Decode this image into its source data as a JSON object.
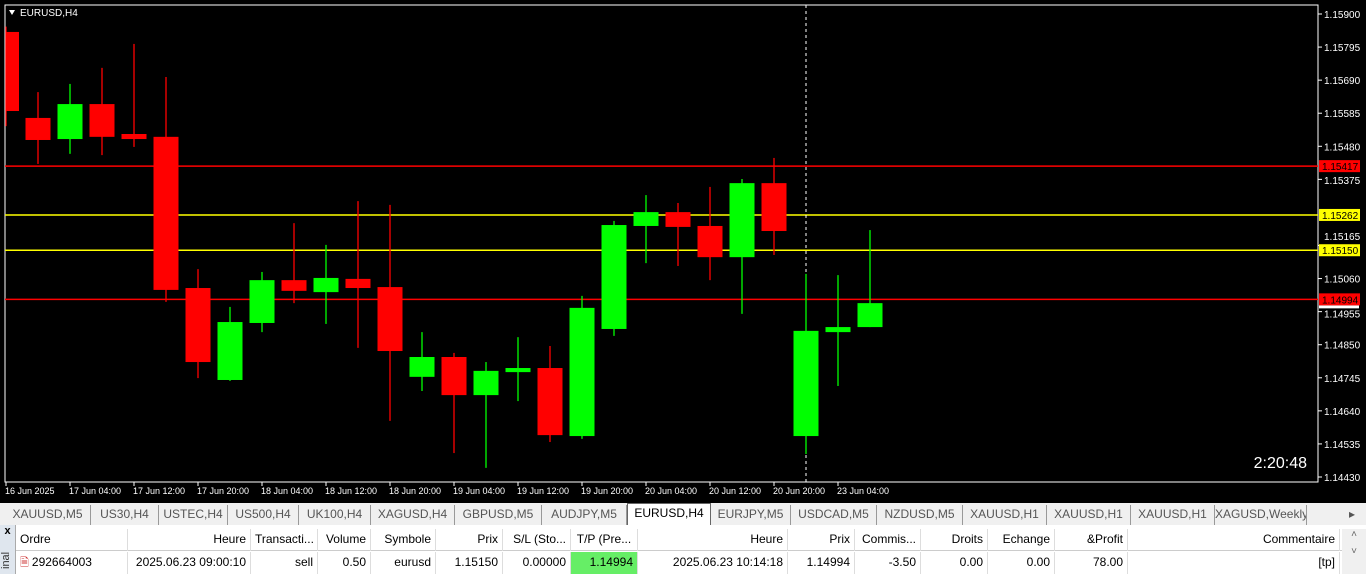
{
  "chart": {
    "title": "EURUSD,H4",
    "timer": "2:20:48",
    "colors": {
      "bull": "#00ff00",
      "bear": "#ff0000",
      "background": "#000000",
      "grid": "#ffffff",
      "tp_line": "#ff0000",
      "entry_line": "#ffff00"
    },
    "price_ticks": [
      "1.15900",
      "1.15795",
      "1.15690",
      "1.15585",
      "1.15480",
      "1.15375",
      "1.15165",
      "1.15060",
      "1.14955",
      "1.14850",
      "1.14745",
      "1.14640",
      "1.14535",
      "1.14430"
    ],
    "time_labels": [
      "16 Jun 2025",
      "17 Jun 04:00",
      "17 Jun 12:00",
      "17 Jun 20:00",
      "18 Jun 04:00",
      "18 Jun 12:00",
      "18 Jun 20:00",
      "19 Jun 04:00",
      "19 Jun 12:00",
      "19 Jun 20:00",
      "20 Jun 04:00",
      "20 Jun 12:00",
      "20 Jun 20:00",
      "23 Jun 04:00"
    ],
    "levels": [
      {
        "price": "1.15417",
        "color": "#ff0000",
        "label_bg": "#ff0000"
      },
      {
        "price": "1.15262",
        "color": "#ffff00",
        "label_bg": "#ffff00"
      },
      {
        "price": "1.15150",
        "color": "#ffff00",
        "label_bg": "#ffff00"
      },
      {
        "price": "1.14994",
        "color": "#ff0000",
        "label_bg": "#ff0000"
      }
    ],
    "candles": [
      {
        "o": 1.15843,
        "h": 1.1586,
        "l": 1.15544,
        "c": 1.15592
      },
      {
        "o": 1.1557,
        "h": 1.15652,
        "l": 1.15424,
        "c": 1.155
      },
      {
        "o": 1.15503,
        "h": 1.15678,
        "l": 1.15456,
        "c": 1.15614
      },
      {
        "o": 1.15614,
        "h": 1.15729,
        "l": 1.15452,
        "c": 1.1551
      },
      {
        "o": 1.15519,
        "h": 1.15805,
        "l": 1.15478,
        "c": 1.15503
      },
      {
        "o": 1.1551,
        "h": 1.157,
        "l": 1.14986,
        "c": 1.15024
      },
      {
        "o": 1.1503,
        "h": 1.1509,
        "l": 1.14744,
        "c": 1.14795
      },
      {
        "o": 1.14738,
        "h": 1.1497,
        "l": 1.14735,
        "c": 1.14922
      },
      {
        "o": 1.14919,
        "h": 1.15081,
        "l": 1.1489,
        "c": 1.15055
      },
      {
        "o": 1.15055,
        "h": 1.15236,
        "l": 1.14982,
        "c": 1.15021
      },
      {
        "o": 1.15017,
        "h": 1.15167,
        "l": 1.14916,
        "c": 1.15062
      },
      {
        "o": 1.15059,
        "h": 1.15306,
        "l": 1.1484,
        "c": 1.1503
      },
      {
        "o": 1.15033,
        "h": 1.15294,
        "l": 1.14608,
        "c": 1.1483
      },
      {
        "o": 1.14748,
        "h": 1.1489,
        "l": 1.14703,
        "c": 1.14811
      },
      {
        "o": 1.14811,
        "h": 1.14824,
        "l": 1.14506,
        "c": 1.1469
      },
      {
        "o": 1.1469,
        "h": 1.14795,
        "l": 1.14459,
        "c": 1.14767
      },
      {
        "o": 1.14763,
        "h": 1.14874,
        "l": 1.14671,
        "c": 1.14776
      },
      {
        "o": 1.14776,
        "h": 1.14846,
        "l": 1.14541,
        "c": 1.14563
      },
      {
        "o": 1.1456,
        "h": 1.15005,
        "l": 1.14551,
        "c": 1.14967
      },
      {
        "o": 1.149,
        "h": 1.15243,
        "l": 1.14878,
        "c": 1.1523
      },
      {
        "o": 1.15227,
        "h": 1.15325,
        "l": 1.15109,
        "c": 1.15271
      },
      {
        "o": 1.15271,
        "h": 1.153,
        "l": 1.151,
        "c": 1.15224
      },
      {
        "o": 1.15227,
        "h": 1.15351,
        "l": 1.15055,
        "c": 1.15128
      },
      {
        "o": 1.15128,
        "h": 1.15376,
        "l": 1.14948,
        "c": 1.15363
      },
      {
        "o": 1.15363,
        "h": 1.15443,
        "l": 1.15135,
        "c": 1.15211
      },
      {
        "o": 1.1456,
        "h": 1.15075,
        "l": 1.14503,
        "c": 1.14894
      },
      {
        "o": 1.1489,
        "h": 1.15071,
        "l": 1.14719,
        "c": 1.14906
      },
      {
        "o": 1.14906,
        "h": 1.15214,
        "l": 1.14906,
        "c": 1.14982
      }
    ],
    "price_range": [
      1.1443,
      1.159
    ]
  },
  "tabs": [
    "XAUUSD,M5",
    "US30,H4",
    "USTEC,H4",
    "US500,H4",
    "UK100,H4",
    "XAGUSD,H4",
    "GBPUSD,M5",
    "AUDJPY,M5",
    "EURUSD,H4",
    "EURJPY,M5",
    "USDCAD,M5",
    "NZDUSD,M5",
    "XAUUSD,H1",
    "XAUUSD,H1",
    "XAUUSD,H1",
    "XAGUSD,Weekly"
  ],
  "active_tab": "EURUSD,H4",
  "terminal": {
    "side_label": "inal",
    "close": "x",
    "columns": [
      "Ordre",
      "Heure",
      "Transacti...",
      "Volume",
      "Symbole",
      "Prix",
      "S/L (Sto...",
      "T/P (Pre...",
      "Heure",
      "Prix",
      "Commis...",
      "Droits",
      "Echange",
      "&Profit",
      "Commentaire"
    ],
    "rows": [
      [
        "292664003",
        "2025.06.23 09:00:10",
        "sell",
        "0.50",
        "eurusd",
        "1.15150",
        "0.00000",
        "1.14994",
        "2025.06.23 10:14:18",
        "1.14994",
        "-3.50",
        "0.00",
        "0.00",
        "78.00",
        "[tp]"
      ]
    ],
    "highlight_color": "#66ee66"
  }
}
